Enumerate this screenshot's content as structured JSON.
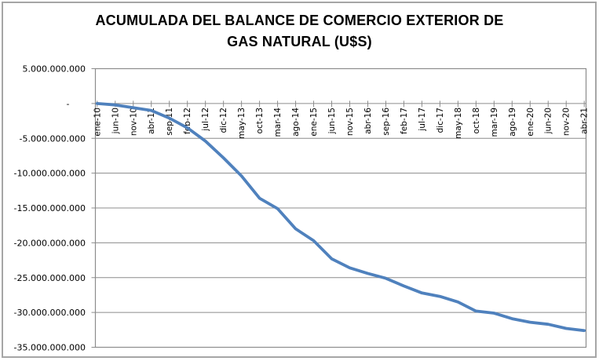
{
  "header": {
    "title_line1": "ACUMULADA DEL BALANCE DE COMERCIO EXTERIOR DE",
    "title_line2": "GAS NATURAL (U$S)"
  },
  "chart_data": {
    "type": "line",
    "title": "ACUMULADA DEL BALANCE DE COMERCIO EXTERIOR DE GAS NATURAL (U$S)",
    "categories": [
      "ene-10",
      "jun-10",
      "nov-10",
      "abr-11",
      "sep-11",
      "feb-12",
      "jul-12",
      "dic-12",
      "may-13",
      "oct-13",
      "mar-14",
      "ago-14",
      "ene-15",
      "jun-15",
      "nov-15",
      "abr-16",
      "sep-16",
      "feb-17",
      "jul-17",
      "dic-17",
      "may-18",
      "oct-18",
      "mar-19",
      "ago-19",
      "ene-20",
      "jun-20",
      "nov-20",
      "abr-21"
    ],
    "values": [
      0,
      -200000000,
      -600000000,
      -1000000000,
      -2100000000,
      -3500000000,
      -5400000000,
      -7800000000,
      -10400000000,
      -13600000000,
      -15100000000,
      -18000000000,
      -19700000000,
      -22300000000,
      -23600000000,
      -24400000000,
      -25100000000,
      -26200000000,
      -27200000000,
      -27700000000,
      -28500000000,
      -29800000000,
      -30100000000,
      -30900000000,
      -31400000000,
      -31700000000,
      -32300000000,
      -32600000000
    ],
    "label_interval_months": 5,
    "total_months": 136,
    "yticks": [
      5000000000,
      0,
      -5000000000,
      -10000000000,
      -15000000000,
      -20000000000,
      -25000000000,
      -30000000000,
      -35000000000
    ],
    "ytick_labels": [
      "5.000.000.000",
      "-",
      "-5.000.000.000",
      "-10.000.000.000",
      "-15.000.000.000",
      "-20.000.000.000",
      "-25.000.000.000",
      "-30.000.000.000",
      "-35.000.000.000"
    ],
    "ylim": [
      -35000000000,
      5000000000
    ],
    "xlabel": "",
    "ylabel": "",
    "grid": true,
    "legend": "none",
    "line_color": "#4F81BD",
    "grid_color": "#8c8c8c",
    "text_color": "#000000",
    "background_color": "#ffffff"
  }
}
